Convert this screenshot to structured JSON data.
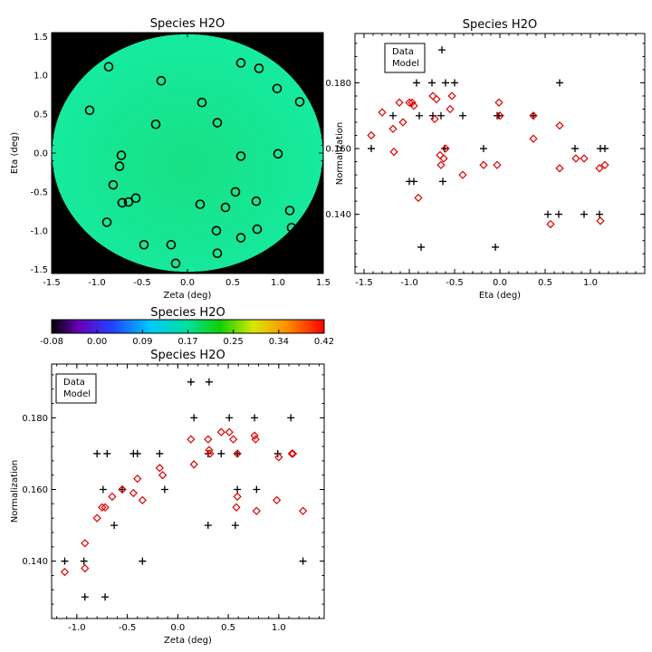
{
  "colors": {
    "data": "#000000",
    "model": "#dd0000",
    "map_fill": "#15e48e",
    "map_bg": "#000000"
  },
  "chart_data": [
    {
      "type": "scatter",
      "title": "Species H2O",
      "xlabel": "Zeta (deg)",
      "ylabel": "Eta (deg)",
      "xlim": [
        -1.5,
        1.5
      ],
      "ylim": [
        -1.55,
        1.55
      ],
      "xticks": [
        "-1.5",
        "-1.0",
        "-0.5",
        "0.0",
        "0.5",
        "1.0",
        "1.5"
      ],
      "yticks": [
        "-1.5",
        "-1.0",
        "-0.5",
        "0.0",
        "0.5",
        "1.0",
        "1.5"
      ],
      "background": "circular colour map",
      "marker": "circle",
      "points": [
        [
          -0.87,
          1.11
        ],
        [
          -0.29,
          0.93
        ],
        [
          -1.08,
          0.55
        ],
        [
          0.16,
          0.65
        ],
        [
          -0.35,
          0.37
        ],
        [
          0.33,
          0.39
        ],
        [
          0.59,
          1.16
        ],
        [
          0.79,
          1.09
        ],
        [
          0.99,
          0.83
        ],
        [
          1.24,
          0.66
        ],
        [
          -0.73,
          -0.03
        ],
        [
          -0.75,
          -0.17
        ],
        [
          -0.82,
          -0.41
        ],
        [
          -0.72,
          -0.64
        ],
        [
          -0.65,
          -0.63
        ],
        [
          -0.57,
          -0.58
        ],
        [
          -0.89,
          -0.89
        ],
        [
          0.59,
          -0.04
        ],
        [
          1.0,
          -0.01
        ],
        [
          0.53,
          -0.5
        ],
        [
          0.14,
          -0.66
        ],
        [
          0.42,
          -0.7
        ],
        [
          0.76,
          -0.62
        ],
        [
          1.13,
          -0.74
        ],
        [
          1.15,
          -0.96
        ],
        [
          0.32,
          -1.0
        ],
        [
          0.59,
          -1.09
        ],
        [
          0.77,
          -0.98
        ],
        [
          -0.48,
          -1.18
        ],
        [
          -0.18,
          -1.18
        ],
        [
          -0.13,
          -1.42
        ],
        [
          0.33,
          -1.29
        ]
      ]
    },
    {
      "type": "scatter",
      "title": "Species H2O",
      "xlabel": "Eta (deg)",
      "ylabel": "Normalization",
      "xlim": [
        -1.6,
        1.6
      ],
      "ylim": [
        0.122,
        0.195
      ],
      "xticks": [
        "-1.5",
        "-1.0",
        "-0.5",
        "0.0",
        "0.5",
        "1.0"
      ],
      "yticks": [
        "0.140",
        "0.160",
        "0.180"
      ],
      "legend": [
        "Data",
        "Model"
      ],
      "legend_position": "top-left",
      "series": [
        {
          "name": "Data",
          "marker": "plus",
          "points": [
            [
              -1.42,
              0.16
            ],
            [
              -1.18,
              0.17
            ],
            [
              -1.0,
              0.15
            ],
            [
              -0.95,
              0.15
            ],
            [
              -0.92,
              0.18
            ],
            [
              -0.89,
              0.17
            ],
            [
              -0.87,
              0.13
            ],
            [
              -0.75,
              0.18
            ],
            [
              -0.74,
              0.17
            ],
            [
              -0.65,
              0.17
            ],
            [
              -0.64,
              0.19
            ],
            [
              -0.63,
              0.15
            ],
            [
              -0.61,
              0.16
            ],
            [
              -0.6,
              0.18
            ],
            [
              -0.5,
              0.18
            ],
            [
              -0.41,
              0.17
            ],
            [
              -0.18,
              0.16
            ],
            [
              -0.05,
              0.13
            ],
            [
              -0.03,
              0.17
            ],
            [
              -0.01,
              0.17
            ],
            [
              0.37,
              0.17
            ],
            [
              0.53,
              0.14
            ],
            [
              0.65,
              0.14
            ],
            [
              0.66,
              0.18
            ],
            [
              0.83,
              0.16
            ],
            [
              0.93,
              0.14
            ],
            [
              1.1,
              0.14
            ],
            [
              1.11,
              0.16
            ],
            [
              1.16,
              0.16
            ]
          ]
        },
        {
          "name": "Model",
          "marker": "diamond",
          "points": [
            [
              -1.42,
              0.164
            ],
            [
              -1.3,
              0.171
            ],
            [
              -1.18,
              0.166
            ],
            [
              -1.17,
              0.159
            ],
            [
              -1.11,
              0.174
            ],
            [
              -1.07,
              0.168
            ],
            [
              -1.0,
              0.174
            ],
            [
              -0.97,
              0.174
            ],
            [
              -0.95,
              0.173
            ],
            [
              -0.9,
              0.145
            ],
            [
              -0.74,
              0.176
            ],
            [
              -0.72,
              0.169
            ],
            [
              -0.7,
              0.175
            ],
            [
              -0.66,
              0.158
            ],
            [
              -0.65,
              0.155
            ],
            [
              -0.62,
              0.157
            ],
            [
              -0.6,
              0.16
            ],
            [
              -0.55,
              0.172
            ],
            [
              -0.53,
              0.176
            ],
            [
              -0.41,
              0.152
            ],
            [
              -0.18,
              0.155
            ],
            [
              -0.03,
              0.155
            ],
            [
              -0.01,
              0.174
            ],
            [
              0.0,
              0.17
            ],
            [
              0.37,
              0.17
            ],
            [
              0.37,
              0.163
            ],
            [
              0.56,
              0.137
            ],
            [
              0.66,
              0.167
            ],
            [
              0.66,
              0.154
            ],
            [
              0.84,
              0.157
            ],
            [
              0.93,
              0.157
            ],
            [
              1.1,
              0.154
            ],
            [
              1.11,
              0.138
            ],
            [
              1.16,
              0.155
            ]
          ]
        }
      ]
    },
    {
      "type": "colorbar",
      "title": "Species H2O",
      "ticks": [
        "-0.08",
        "0.00",
        "0.09",
        "0.17",
        "0.25",
        "0.34",
        "0.42"
      ],
      "range": [
        -0.08,
        0.42
      ]
    },
    {
      "type": "scatter",
      "title": "Species H2O",
      "xlabel": "Zeta (deg)",
      "ylabel": "Normalization",
      "xlim": [
        -1.25,
        1.45
      ],
      "ylim": [
        0.124,
        0.195
      ],
      "xticks": [
        "-1.0",
        "-0.5",
        "0.0",
        "0.5",
        "1.0"
      ],
      "yticks": [
        "0.140",
        "0.160",
        "0.180"
      ],
      "legend": [
        "Data",
        "Model"
      ],
      "legend_position": "top-left",
      "series": [
        {
          "name": "Data",
          "marker": "plus",
          "points": [
            [
              -1.12,
              0.14
            ],
            [
              -0.93,
              0.14
            ],
            [
              -0.92,
              0.13
            ],
            [
              -0.8,
              0.17
            ],
            [
              -0.74,
              0.16
            ],
            [
              -0.72,
              0.13
            ],
            [
              -0.7,
              0.17
            ],
            [
              -0.63,
              0.15
            ],
            [
              -0.55,
              0.16
            ],
            [
              -0.44,
              0.17
            ],
            [
              -0.4,
              0.17
            ],
            [
              -0.35,
              0.14
            ],
            [
              -0.18,
              0.17
            ],
            [
              -0.13,
              0.16
            ],
            [
              0.13,
              0.19
            ],
            [
              0.16,
              0.18
            ],
            [
              0.3,
              0.15
            ],
            [
              0.3,
              0.17
            ],
            [
              0.31,
              0.19
            ],
            [
              0.43,
              0.17
            ],
            [
              0.51,
              0.18
            ],
            [
              0.57,
              0.15
            ],
            [
              0.59,
              0.17
            ],
            [
              0.59,
              0.16
            ],
            [
              0.76,
              0.18
            ],
            [
              0.78,
              0.16
            ],
            [
              0.99,
              0.17
            ],
            [
              1.12,
              0.18
            ],
            [
              1.24,
              0.14
            ]
          ]
        },
        {
          "name": "Model",
          "marker": "diamond",
          "points": [
            [
              -1.12,
              0.137
            ],
            [
              -0.92,
              0.145
            ],
            [
              -0.92,
              0.138
            ],
            [
              -0.8,
              0.152
            ],
            [
              -0.75,
              0.155
            ],
            [
              -0.72,
              0.155
            ],
            [
              -0.65,
              0.158
            ],
            [
              -0.55,
              0.16
            ],
            [
              -0.44,
              0.159
            ],
            [
              -0.4,
              0.163
            ],
            [
              -0.35,
              0.157
            ],
            [
              -0.18,
              0.166
            ],
            [
              -0.15,
              0.164
            ],
            [
              0.13,
              0.174
            ],
            [
              0.16,
              0.167
            ],
            [
              0.3,
              0.174
            ],
            [
              0.31,
              0.171
            ],
            [
              0.32,
              0.17
            ],
            [
              0.43,
              0.176
            ],
            [
              0.51,
              0.176
            ],
            [
              0.55,
              0.174
            ],
            [
              0.58,
              0.155
            ],
            [
              0.59,
              0.158
            ],
            [
              0.59,
              0.17
            ],
            [
              0.76,
              0.175
            ],
            [
              0.77,
              0.174
            ],
            [
              0.78,
              0.154
            ],
            [
              0.98,
              0.157
            ],
            [
              1.0,
              0.169
            ],
            [
              1.13,
              0.17
            ],
            [
              1.14,
              0.17
            ],
            [
              1.24,
              0.154
            ]
          ]
        }
      ]
    }
  ]
}
